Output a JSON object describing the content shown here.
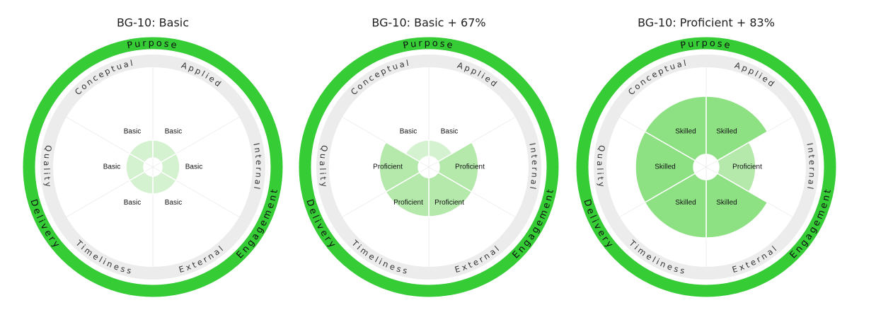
{
  "panels": [
    {
      "title": "BG-10: Basic",
      "outer_labels": [
        "Purpose",
        "Engagement",
        "Delivery"
      ],
      "dimension_labels": [
        "Conceptual",
        "Applied",
        "Internal",
        "External",
        "Timeliness",
        "Quality"
      ],
      "segments": [
        "Basic",
        "Basic",
        "Basic",
        "Basic",
        "Basic",
        "Basic"
      ]
    },
    {
      "title": "BG-10: Basic + 67%",
      "outer_labels": [
        "Purpose",
        "Engagement",
        "Delivery"
      ],
      "dimension_labels": [
        "Conceptual",
        "Applied",
        "Internal",
        "External",
        "Timeliness",
        "Quality"
      ],
      "segments": [
        "Basic",
        "Basic",
        "Proficient",
        "Proficient",
        "Proficient",
        "Proficient"
      ]
    },
    {
      "title": "BG-10: Proficient + 83%",
      "outer_labels": [
        "Purpose",
        "Engagement",
        "Delivery"
      ],
      "dimension_labels": [
        "Conceptual",
        "Applied",
        "Internal",
        "External",
        "Timeliness",
        "Quality"
      ],
      "segments": [
        "Skilled",
        "Skilled",
        "Proficient",
        "Skilled",
        "Skilled",
        "Skilled"
      ]
    }
  ]
}
